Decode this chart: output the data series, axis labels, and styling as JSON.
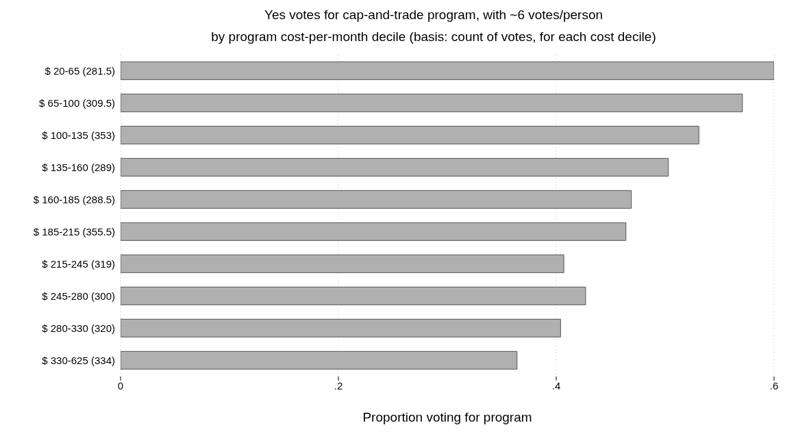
{
  "chart_data": {
    "type": "bar",
    "orientation": "horizontal",
    "title": "Yes votes for cap-and-trade program, with ~6 votes/person",
    "subtitle": "by program cost-per-month decile (basis: count of votes, for each cost decile)",
    "xlabel": "Proportion voting for program",
    "categories": [
      "$ 20-65 (281.5)",
      "$ 65-100 (309.5)",
      "$ 100-135 (353)",
      "$ 135-160 (289)",
      "$ 160-185 (288.5)",
      "$ 185-215 (355.5)",
      "$ 215-245 (319)",
      "$ 245-280 (300)",
      "$ 280-330 (320)",
      "$ 330-625 (334)"
    ],
    "values": [
      0.6,
      0.571,
      0.531,
      0.503,
      0.469,
      0.464,
      0.407,
      0.427,
      0.404,
      0.364
    ],
    "color": "#b0b0b0",
    "xlim": [
      0,
      0.6
    ],
    "xticks": [
      {
        "value": 0,
        "label": "0"
      },
      {
        "value": 0.2,
        "label": ".2"
      },
      {
        "value": 0.4,
        "label": ".4"
      },
      {
        "value": 0.6,
        "label": ".6"
      }
    ],
    "grid": "x"
  }
}
